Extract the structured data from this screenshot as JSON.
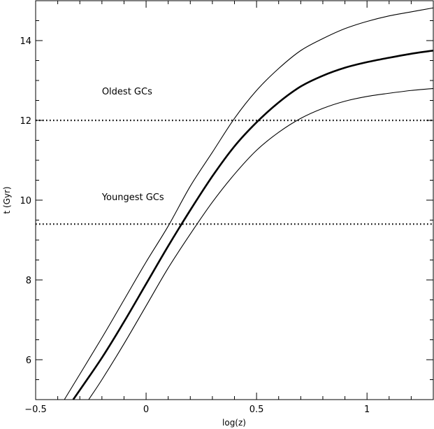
{
  "chart_data": {
    "type": "line",
    "title": "",
    "xlabel": "log(z)",
    "ylabel": "t (Gyr)",
    "xlim": [
      -0.5,
      1.3
    ],
    "ylim": [
      5,
      15
    ],
    "x_ticks": [
      -0.5,
      0,
      0.5,
      1
    ],
    "x_tick_labels": [
      "−0.5",
      "0",
      "0.5",
      "1"
    ],
    "y_ticks": [
      6,
      8,
      10,
      12,
      14
    ],
    "y_tick_labels": [
      "6",
      "8",
      "10",
      "12",
      "14"
    ],
    "grid": false,
    "legend": "none",
    "series": [
      {
        "style": "thick",
        "x": [
          -0.33,
          -0.2,
          -0.1,
          0.0,
          0.1,
          0.2,
          0.3,
          0.4,
          0.5,
          0.6,
          0.7,
          0.8,
          0.9,
          1.0,
          1.1,
          1.2,
          1.3
        ],
        "y": [
          5.0,
          6.05,
          6.95,
          7.9,
          8.85,
          9.75,
          10.6,
          11.35,
          11.95,
          12.45,
          12.85,
          13.12,
          13.32,
          13.46,
          13.57,
          13.67,
          13.75
        ]
      },
      {
        "style": "thin",
        "x": [
          -0.37,
          -0.2,
          -0.1,
          0.0,
          0.1,
          0.2,
          0.3,
          0.4,
          0.5,
          0.6,
          0.7,
          0.8,
          0.9,
          1.0,
          1.1,
          1.2,
          1.3
        ],
        "y": [
          5.0,
          6.55,
          7.5,
          8.45,
          9.35,
          10.35,
          11.2,
          12.05,
          12.75,
          13.3,
          13.75,
          14.05,
          14.3,
          14.48,
          14.62,
          14.72,
          14.82
        ]
      },
      {
        "style": "thin",
        "x": [
          -0.26,
          -0.2,
          -0.1,
          0.0,
          0.1,
          0.2,
          0.3,
          0.4,
          0.5,
          0.6,
          0.7,
          0.8,
          0.9,
          1.0,
          1.1,
          1.2,
          1.3
        ],
        "y": [
          5.0,
          5.5,
          6.4,
          7.35,
          8.3,
          9.15,
          9.95,
          10.65,
          11.25,
          11.7,
          12.05,
          12.3,
          12.48,
          12.6,
          12.68,
          12.75,
          12.8
        ]
      }
    ],
    "hlines": [
      {
        "y": 12.0,
        "style": "dotted"
      },
      {
        "y": 9.4,
        "style": "dotted"
      }
    ],
    "annotations": [
      {
        "text": "Oldest  GCs",
        "x": -0.2,
        "y": 12.65
      },
      {
        "text": "Youngest  GCs",
        "x": -0.2,
        "y": 10.0
      }
    ]
  }
}
